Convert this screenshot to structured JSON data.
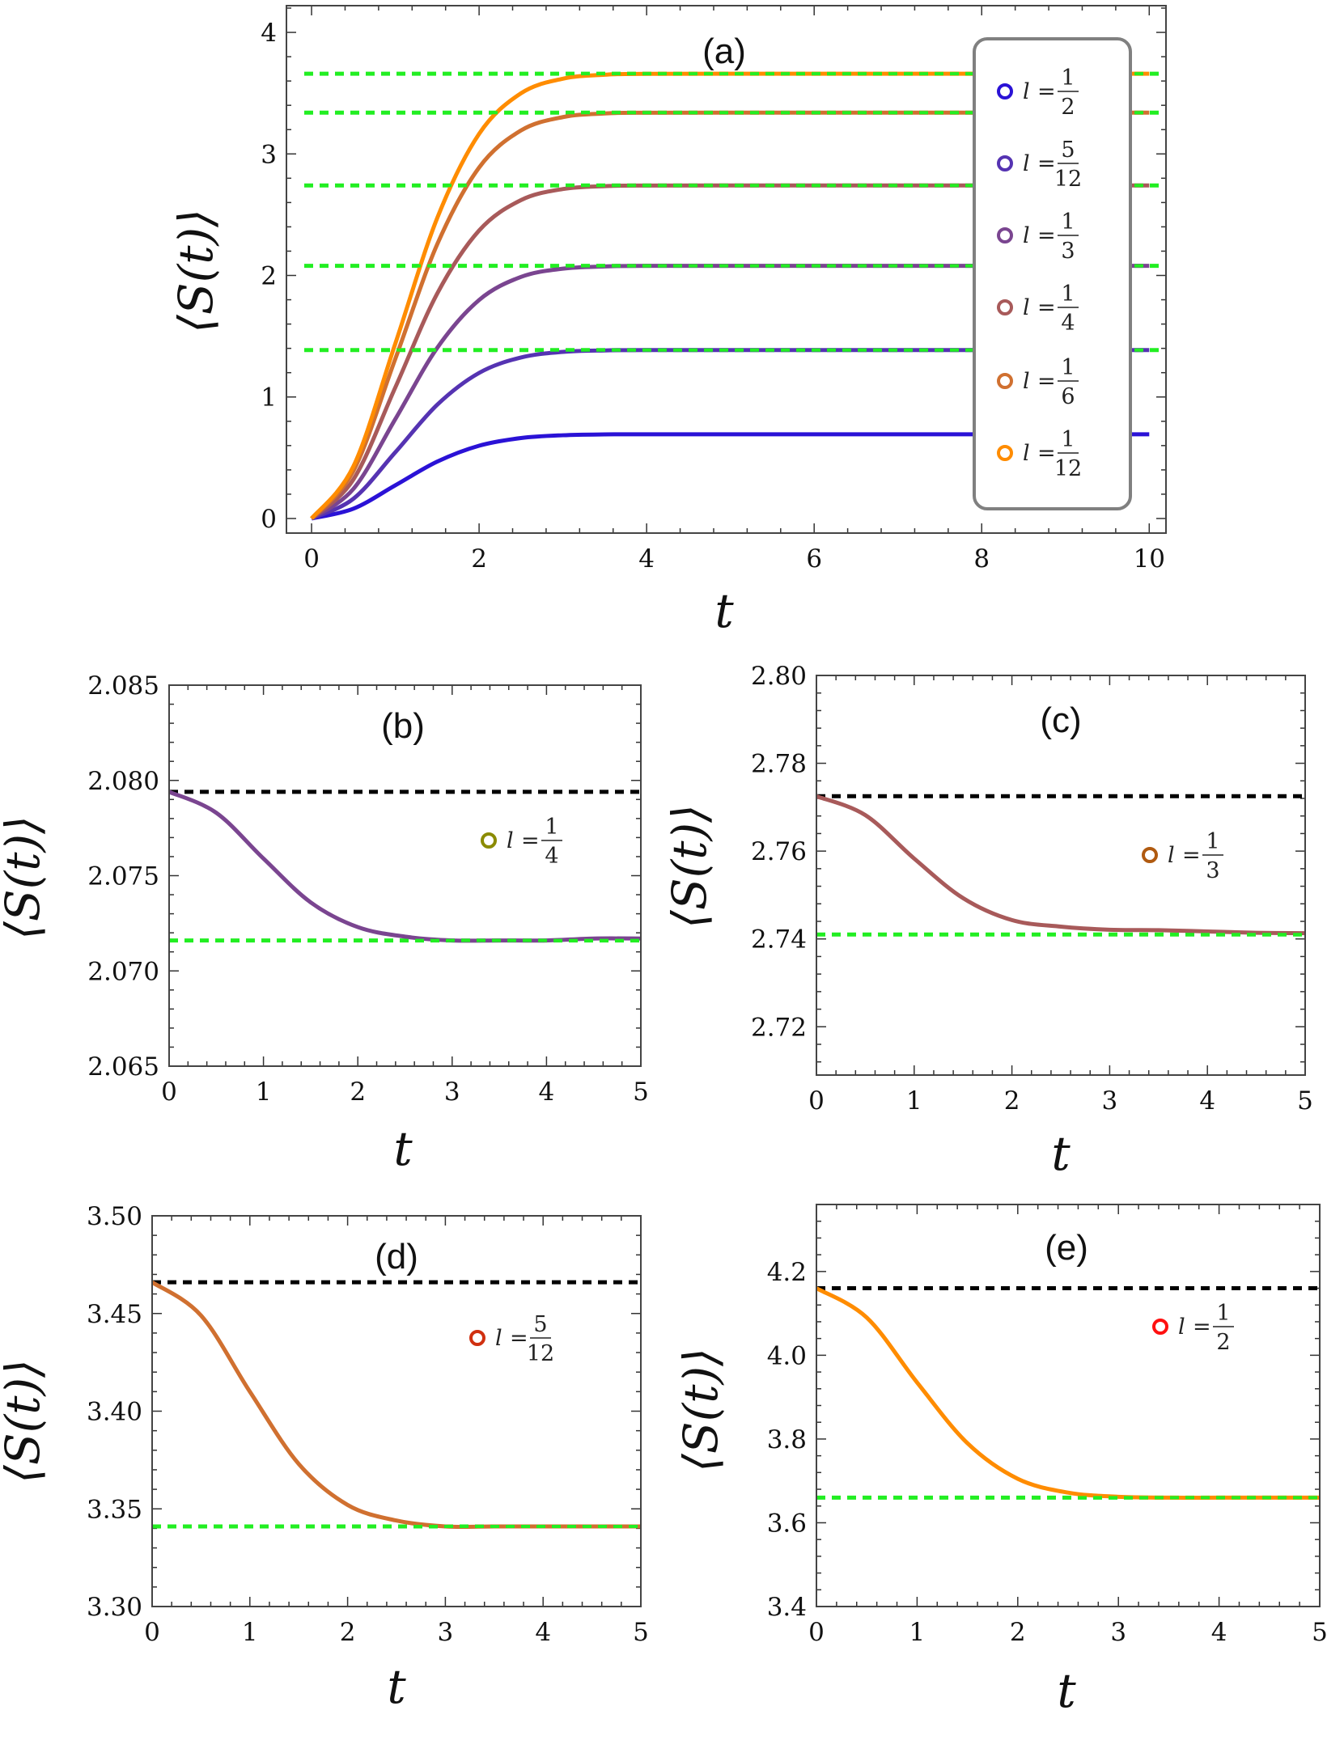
{
  "chart_data": [
    {
      "type": "line",
      "panel_label": "(a)",
      "xlabel": "t",
      "ylabel": "⟨S(t)⟩",
      "xlim": [
        -0.3,
        10.2
      ],
      "ylim": [
        -0.12,
        4.22
      ],
      "xticks": [
        0,
        2,
        4,
        6,
        8,
        10
      ],
      "yticks": [
        0,
        1,
        2,
        3,
        4
      ],
      "ytick_labels": [
        "0",
        "1",
        "2",
        "3",
        "4"
      ],
      "legend_position": "right",
      "x": [
        0,
        0.5,
        1,
        1.5,
        2,
        2.5,
        3,
        3.5,
        4,
        6,
        8,
        10
      ],
      "series": [
        {
          "name": "l = 1/2",
          "color": "#2a12d6",
          "values": [
            0,
            0.081,
            0.273,
            0.468,
            0.599,
            0.662,
            0.685,
            0.692,
            0.693,
            0.693,
            0.693,
            0.693
          ]
        },
        {
          "name": "l = 5/12",
          "color": "#5533b2",
          "values": [
            0,
            0.163,
            0.545,
            0.936,
            1.198,
            1.325,
            1.371,
            1.383,
            1.386,
            1.386,
            1.386,
            1.386
          ]
        },
        {
          "name": "l = 1/3",
          "color": "#7a4590",
          "values": [
            0,
            0.244,
            0.818,
            1.404,
            1.798,
            1.988,
            2.056,
            2.074,
            2.079,
            2.079,
            2.079,
            2.079
          ]
        },
        {
          "name": "l = 1/4",
          "color": "#a85a5a",
          "values": [
            0,
            0.322,
            1.079,
            1.851,
            2.37,
            2.62,
            2.711,
            2.735,
            2.74,
            2.741,
            2.741,
            2.741
          ]
        },
        {
          "name": "l = 1/6",
          "color": "#d07030",
          "values": [
            0,
            0.392,
            1.314,
            2.256,
            2.888,
            3.193,
            3.303,
            3.333,
            3.339,
            3.34,
            3.34,
            3.34
          ]
        },
        {
          "name": "l = 1/12",
          "color": "#ff8c00",
          "values": [
            0,
            0.43,
            1.44,
            2.472,
            3.165,
            3.499,
            3.619,
            3.652,
            3.659,
            3.66,
            3.66,
            3.66
          ]
        }
      ],
      "reference_lines": [
        {
          "y": 1.386,
          "color": "#22ee22",
          "style": "dashed"
        },
        {
          "y": 2.079,
          "color": "#22ee22",
          "style": "dashed"
        },
        {
          "y": 2.741,
          "color": "#22ee22",
          "style": "dashed"
        },
        {
          "y": 3.34,
          "color": "#22ee22",
          "style": "dashed"
        },
        {
          "y": 3.66,
          "color": "#22ee22",
          "style": "dashed"
        }
      ]
    },
    {
      "type": "line",
      "panel_label": "(b)",
      "xlabel": "t",
      "ylabel": "⟨S(t)⟩",
      "xlim": [
        0,
        5
      ],
      "ylim": [
        2.065,
        2.085
      ],
      "xticks": [
        0,
        1,
        2,
        3,
        4,
        5
      ],
      "yticks": [
        2.065,
        2.07,
        2.075,
        2.08,
        2.085
      ],
      "ytick_labels": [
        "2.065",
        "2.070",
        "2.075",
        "2.080",
        "2.085"
      ],
      "x": [
        0,
        0.5,
        1,
        1.5,
        2,
        2.5,
        3,
        3.5,
        4,
        4.5,
        5
      ],
      "series": [
        {
          "name": "l = 1/4",
          "color": "#7a4590",
          "marker_color": "#8b8b00",
          "values": [
            2.0794,
            2.0783,
            2.0759,
            2.0736,
            2.0723,
            2.0718,
            2.0716,
            2.0716,
            2.0716,
            2.0717,
            2.0717
          ]
        }
      ],
      "reference_lines": [
        {
          "y": 2.0794,
          "color": "#000000",
          "style": "dashed"
        },
        {
          "y": 2.0716,
          "color": "#22ee22",
          "style": "dashed"
        }
      ]
    },
    {
      "type": "line",
      "panel_label": "(c)",
      "xlabel": "t",
      "ylabel": "⟨S(t)⟩",
      "xlim": [
        0,
        5
      ],
      "ylim": [
        2.709,
        2.8
      ],
      "xticks": [
        0,
        1,
        2,
        3,
        4,
        5
      ],
      "yticks": [
        2.72,
        2.74,
        2.76,
        2.78,
        2.8
      ],
      "ytick_labels": [
        "2.72",
        "2.74",
        "2.76",
        "2.78",
        "2.80"
      ],
      "x": [
        0,
        0.5,
        1,
        1.5,
        2,
        2.5,
        3,
        3.5,
        4,
        4.5,
        5
      ],
      "series": [
        {
          "name": "l = 1/3",
          "color": "#a85a5a",
          "marker_color": "#b05a10",
          "values": [
            2.7725,
            2.7682,
            2.7583,
            2.7493,
            2.7443,
            2.7428,
            2.7421,
            2.742,
            2.7417,
            2.7414,
            2.7413
          ]
        }
      ],
      "reference_lines": [
        {
          "y": 2.7725,
          "color": "#000000",
          "style": "dashed"
        },
        {
          "y": 2.741,
          "color": "#22ee22",
          "style": "dashed"
        }
      ]
    },
    {
      "type": "line",
      "panel_label": "(d)",
      "xlabel": "t",
      "ylabel": "⟨S(t)⟩",
      "xlim": [
        0,
        5
      ],
      "ylim": [
        3.3,
        3.5
      ],
      "xticks": [
        0,
        1,
        2,
        3,
        4,
        5
      ],
      "yticks": [
        3.3,
        3.35,
        3.4,
        3.45,
        3.5
      ],
      "ytick_labels": [
        "3.30",
        "3.35",
        "3.40",
        "3.45",
        "3.50"
      ],
      "x": [
        0,
        0.5,
        1,
        1.5,
        2,
        2.5,
        3,
        3.5,
        4,
        4.5,
        5
      ],
      "series": [
        {
          "name": "l = 5/12",
          "color": "#d07030",
          "marker_color": "#d03010",
          "values": [
            3.466,
            3.449,
            3.41,
            3.373,
            3.352,
            3.344,
            3.341,
            3.341,
            3.341,
            3.341,
            3.341
          ]
        }
      ],
      "reference_lines": [
        {
          "y": 3.466,
          "color": "#000000",
          "style": "dashed"
        },
        {
          "y": 3.341,
          "color": "#22ee22",
          "style": "dashed"
        }
      ]
    },
    {
      "type": "line",
      "panel_label": "(e)",
      "xlabel": "t",
      "ylabel": "⟨S(t)⟩",
      "xlim": [
        0,
        5
      ],
      "ylim": [
        3.4,
        4.36
      ],
      "xticks": [
        0,
        1,
        2,
        3,
        4,
        5
      ],
      "yticks": [
        3.4,
        3.6,
        3.8,
        4.0,
        4.2
      ],
      "ytick_labels": [
        "3.4",
        "3.6",
        "3.8",
        "4.0",
        "4.2"
      ],
      "x": [
        0,
        0.5,
        1,
        1.5,
        2,
        2.5,
        3,
        3.5,
        4,
        4.5,
        5
      ],
      "series": [
        {
          "name": "l = 1/2",
          "color": "#ff8c00",
          "marker_color": "#ff1010",
          "values": [
            4.16,
            4.09,
            3.935,
            3.79,
            3.705,
            3.672,
            3.662,
            3.66,
            3.66,
            3.66,
            3.66
          ]
        }
      ],
      "reference_lines": [
        {
          "y": 4.16,
          "color": "#000000",
          "style": "dashed"
        },
        {
          "y": 3.66,
          "color": "#22ee22",
          "style": "dashed"
        }
      ]
    }
  ]
}
